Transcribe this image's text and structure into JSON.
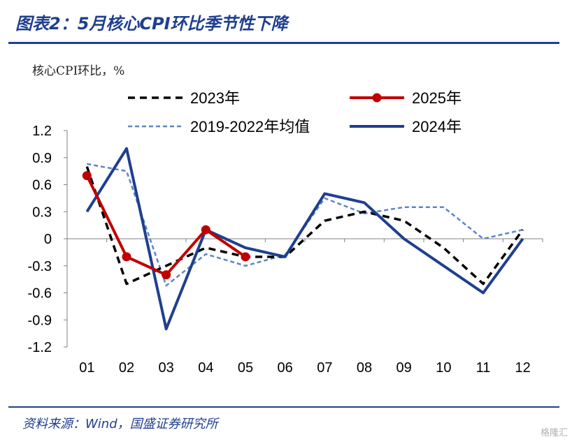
{
  "figure": {
    "title": "图表2：5月核心CPI环比季节性下降",
    "unit_label": "核心CPI环比，%",
    "source": "资料来源：Wind，国盛证券研究所",
    "watermark": "格隆汇"
  },
  "chart_data": {
    "type": "line",
    "title": "图表2：5月核心CPI环比季节性下降",
    "ylabel": "核心CPI环比，%",
    "xlabel": "",
    "categories": [
      "01",
      "02",
      "03",
      "04",
      "05",
      "06",
      "07",
      "08",
      "09",
      "10",
      "11",
      "12"
    ],
    "ylim": [
      -1.2,
      1.2
    ],
    "yticks": [
      "1.2",
      "0.9",
      "0.6",
      "0.3",
      "0",
      "-0.3",
      "-0.6",
      "-0.9",
      "-1.2"
    ],
    "legend": "top",
    "series": [
      {
        "name": "2023年",
        "color": "#000000",
        "style": "dashed",
        "values": [
          0.8,
          -0.5,
          -0.3,
          -0.1,
          -0.2,
          -0.2,
          0.2,
          0.3,
          0.2,
          -0.1,
          -0.5,
          0.1
        ]
      },
      {
        "name": "2025年",
        "color": "#c00000",
        "style": "solid-markers",
        "values": [
          0.7,
          -0.2,
          -0.4,
          0.1,
          -0.2,
          null,
          null,
          null,
          null,
          null,
          null,
          null
        ]
      },
      {
        "name": "2019-2022年均值",
        "color": "#5b86c6",
        "style": "dotted",
        "values": [
          0.83,
          0.75,
          -0.52,
          -0.17,
          -0.3,
          -0.18,
          0.45,
          0.28,
          0.35,
          0.35,
          0.0,
          0.1
        ]
      },
      {
        "name": "2024年",
        "color": "#1f3f8f",
        "style": "solid-thick",
        "values": [
          0.3,
          1.0,
          -1.0,
          0.1,
          -0.1,
          -0.2,
          0.5,
          0.4,
          0.0,
          -0.3,
          -0.6,
          0.0
        ]
      }
    ]
  }
}
